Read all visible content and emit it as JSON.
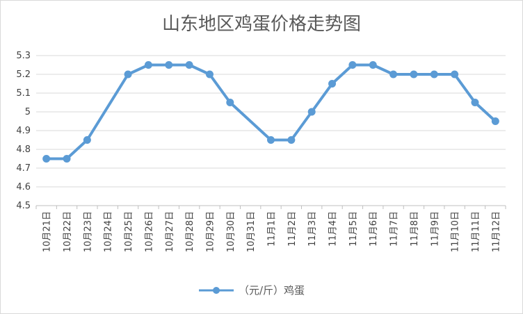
{
  "chart_data": {
    "type": "line",
    "title": "山东地区鸡蛋价格走势图",
    "xlabel": "",
    "ylabel": "",
    "categories": [
      "10月21日",
      "10月22日",
      "10月23日",
      "10月24日",
      "10月25日",
      "10月26日",
      "10月27日",
      "10月28日",
      "10月29日",
      "10月30日",
      "10月31日",
      "11月1日",
      "11月2日",
      "11月3日",
      "11月4日",
      "11月5日",
      "11月6日",
      "11月7日",
      "11月8日",
      "11月9日",
      "11月10日",
      "11月11日",
      "11月12日"
    ],
    "yticks": [
      "4.5",
      "4.6",
      "4.7",
      "4.8",
      "4.9",
      "5",
      "5.1",
      "5.2",
      "5.3"
    ],
    "ylim": [
      4.5,
      5.3
    ],
    "grid": true,
    "legend_position": "bottom",
    "series": [
      {
        "name": "（元/斤）鸡蛋",
        "color": "#5b9bd5",
        "values": [
          4.75,
          4.75,
          4.85,
          null,
          5.2,
          5.25,
          5.25,
          5.25,
          5.2,
          5.05,
          null,
          4.85,
          4.85,
          5.0,
          5.15,
          5.25,
          5.25,
          5.2,
          5.2,
          5.2,
          5.2,
          5.05,
          4.95
        ]
      }
    ]
  }
}
